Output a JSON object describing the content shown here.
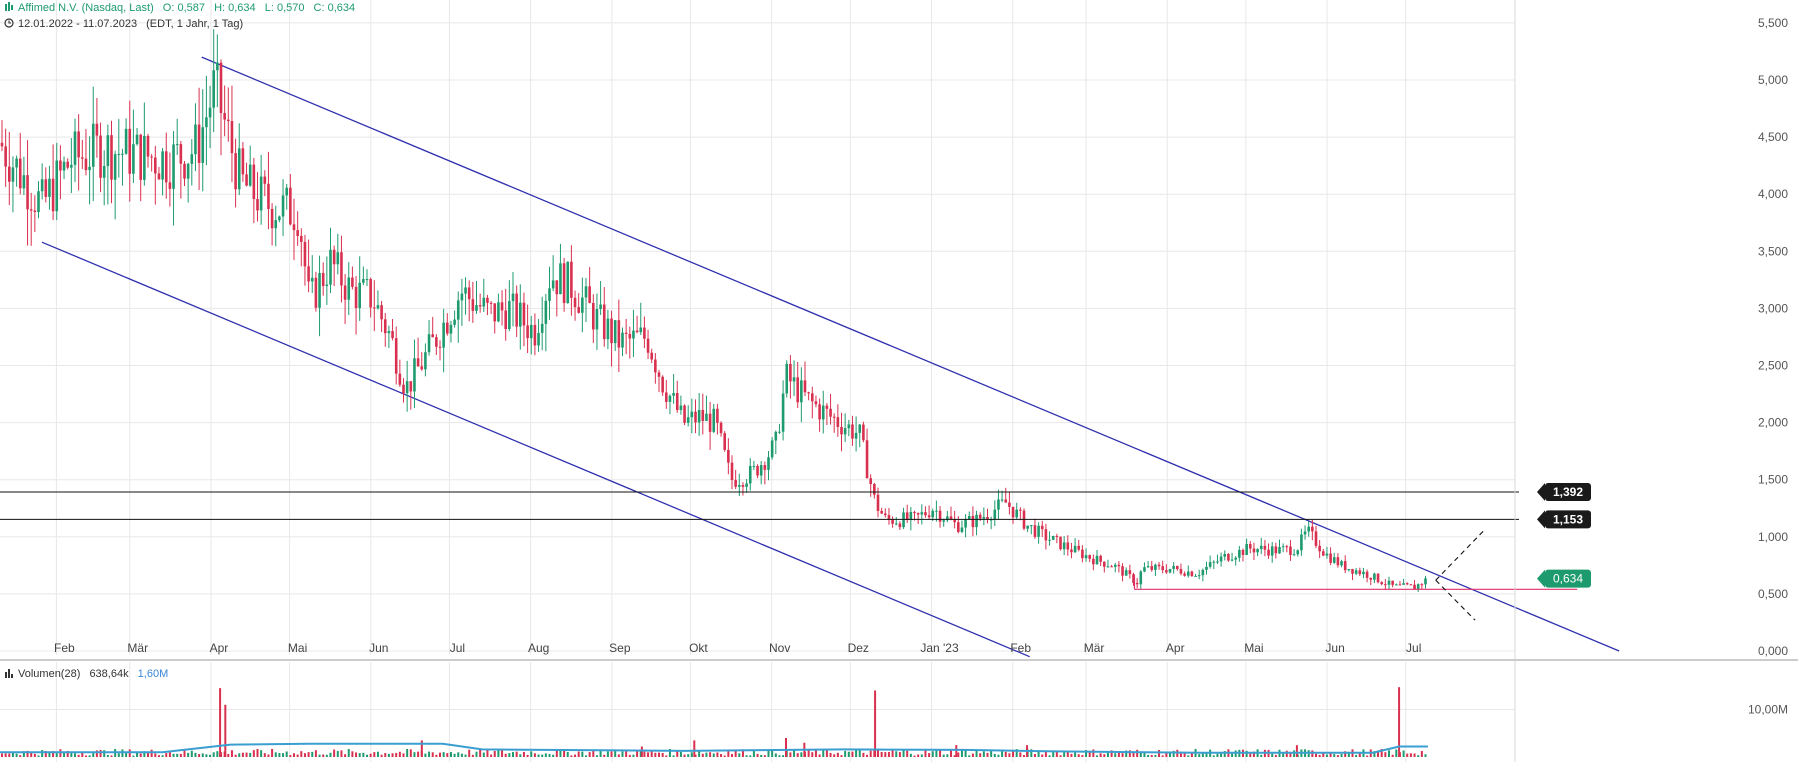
{
  "header": {
    "instrument": "Affimed N.V. (Nasdaq, Last)",
    "open": "O: 0,587",
    "high": "H: 0,634",
    "low": "L: 0,570",
    "close": "C: 0,634",
    "range": "12.01.2022 - 11.07.2023",
    "range_info": "(EDT, 1 Jahr, 1 Tag)"
  },
  "volume_panel": {
    "label": "Volumen(28)",
    "value": "638,64k",
    "avg": "1,60M",
    "tick": "10,00M"
  },
  "colors": {
    "up": "#1e9b6e",
    "down": "#d9304f",
    "trend": "#3030b0",
    "support": "#e0306a",
    "grid": "#e8e8e8",
    "volume_avg": "#3a9fd0"
  },
  "chart_data": {
    "type": "candlestick",
    "x_labels": [
      "Feb",
      "Mär",
      "Apr",
      "Mai",
      "Jun",
      "Jul",
      "Aug",
      "Sep",
      "Okt",
      "Nov",
      "Dez",
      "Jan '23",
      "Feb",
      "Mär",
      "Apr",
      "Mai",
      "Jun",
      "Jul"
    ],
    "y_ticks": [
      "0,000",
      "0,500",
      "1,000",
      "1,500",
      "2,000",
      "2,500",
      "3,000",
      "3,500",
      "4,000",
      "4,500",
      "5,000",
      "5,500"
    ],
    "ylim": [
      0,
      5.5
    ],
    "close_path": [
      [
        "2022-01-12",
        4.45
      ],
      [
        "2022-01-28",
        3.9
      ],
      [
        "2022-02-08",
        4.3
      ],
      [
        "2022-02-20",
        4.4
      ],
      [
        "2022-03-05",
        4.35
      ],
      [
        "2022-03-18",
        4.3
      ],
      [
        "2022-03-28",
        4.4
      ],
      [
        "2022-04-04",
        4.95
      ],
      [
        "2022-04-08",
        4.6
      ],
      [
        "2022-04-14",
        4.1
      ],
      [
        "2022-04-25",
        3.9
      ],
      [
        "2022-05-06",
        3.85
      ],
      [
        "2022-05-10",
        3.05
      ],
      [
        "2022-05-18",
        3.4
      ],
      [
        "2022-05-26",
        3.15
      ],
      [
        "2022-06-03",
        3.1
      ],
      [
        "2022-06-10",
        2.75
      ],
      [
        "2022-06-16",
        2.3
      ],
      [
        "2022-06-24",
        2.6
      ],
      [
        "2022-06-30",
        2.85
      ],
      [
        "2022-07-07",
        3.15
      ],
      [
        "2022-07-18",
        2.95
      ],
      [
        "2022-07-25",
        3.0
      ],
      [
        "2022-08-04",
        2.8
      ],
      [
        "2022-08-10",
        3.3
      ],
      [
        "2022-08-18",
        3.2
      ],
      [
        "2022-08-28",
        2.9
      ],
      [
        "2022-09-06",
        2.7
      ],
      [
        "2022-09-16",
        2.75
      ],
      [
        "2022-09-22",
        2.35
      ],
      [
        "2022-09-30",
        2.0
      ],
      [
        "2022-10-06",
        2.05
      ],
      [
        "2022-10-12",
        2.0
      ],
      [
        "2022-10-18",
        1.5
      ],
      [
        "2022-10-26",
        1.55
      ],
      [
        "2022-11-04",
        1.8
      ],
      [
        "2022-11-08",
        2.4
      ],
      [
        "2022-11-16",
        2.2
      ],
      [
        "2022-11-25",
        2.05
      ],
      [
        "2022-12-06",
        1.9
      ],
      [
        "2022-12-12",
        1.3
      ],
      [
        "2022-12-16",
        1.15
      ],
      [
        "2022-12-27",
        1.15
      ],
      [
        "2023-01-03",
        1.25
      ],
      [
        "2023-01-12",
        1.1
      ],
      [
        "2023-01-20",
        1.15
      ],
      [
        "2023-01-31",
        1.3
      ],
      [
        "2023-02-08",
        1.1
      ],
      [
        "2023-02-15",
        1.0
      ],
      [
        "2023-02-24",
        0.9
      ],
      [
        "2023-03-06",
        0.8
      ],
      [
        "2023-03-13",
        0.75
      ],
      [
        "2023-03-22",
        0.6
      ],
      [
        "2023-03-24",
        0.72
      ],
      [
        "2023-04-04",
        0.72
      ],
      [
        "2023-04-14",
        0.68
      ],
      [
        "2023-04-24",
        0.82
      ],
      [
        "2023-05-04",
        0.9
      ],
      [
        "2023-05-15",
        0.88
      ],
      [
        "2023-05-22",
        0.9
      ],
      [
        "2023-05-26",
        1.05
      ],
      [
        "2023-06-02",
        0.85
      ],
      [
        "2023-06-08",
        0.75
      ],
      [
        "2023-06-18",
        0.67
      ],
      [
        "2023-06-28",
        0.56
      ],
      [
        "2023-07-06",
        0.56
      ],
      [
        "2023-07-11",
        0.634
      ]
    ],
    "horizontal_levels": [
      1.392,
      1.153
    ],
    "level_labels": [
      "1,392",
      "1,153"
    ],
    "last_price": 0.634,
    "last_label": "0,634",
    "support_level": 0.54,
    "trendlines": [
      {
        "name": "upper",
        "from": [
          "2022-03-30",
          5.2
        ],
        "to": [
          "2023-09-22",
          0.0
        ]
      },
      {
        "name": "lower",
        "from": [
          "2022-01-28",
          3.58
        ],
        "to": [
          "2023-02-09",
          -0.05
        ]
      }
    ],
    "volume": {
      "spikes": [
        [
          "2022-04-06",
          14.5
        ],
        [
          "2022-04-08",
          11.0
        ],
        [
          "2022-12-12",
          14.0
        ],
        [
          "2023-06-30",
          14.7
        ],
        [
          "2022-11-08",
          4.0
        ],
        [
          "2022-10-04",
          3.5
        ],
        [
          "2022-06-22",
          3.5
        ],
        [
          "2022-11-15",
          3.0
        ],
        [
          "2023-01-12",
          2.5
        ],
        [
          "2023-02-08",
          2.5
        ],
        [
          "2023-05-22",
          2.5
        ],
        [
          "2022-09-14",
          2.2
        ]
      ],
      "average": [
        [
          "2022-01-12",
          1.0
        ],
        [
          "2022-03-15",
          1.0
        ],
        [
          "2022-04-10",
          2.6
        ],
        [
          "2022-05-10",
          2.8
        ],
        [
          "2022-06-30",
          2.8
        ],
        [
          "2022-07-15",
          1.6
        ],
        [
          "2022-09-30",
          1.3
        ],
        [
          "2022-11-30",
          1.6
        ],
        [
          "2023-01-15",
          1.5
        ],
        [
          "2023-02-15",
          1.2
        ],
        [
          "2023-04-15",
          0.9
        ],
        [
          "2023-06-20",
          0.9
        ],
        [
          "2023-06-30",
          2.2
        ],
        [
          "2023-07-11",
          2.2
        ]
      ],
      "ylim": [
        0,
        15
      ]
    }
  }
}
